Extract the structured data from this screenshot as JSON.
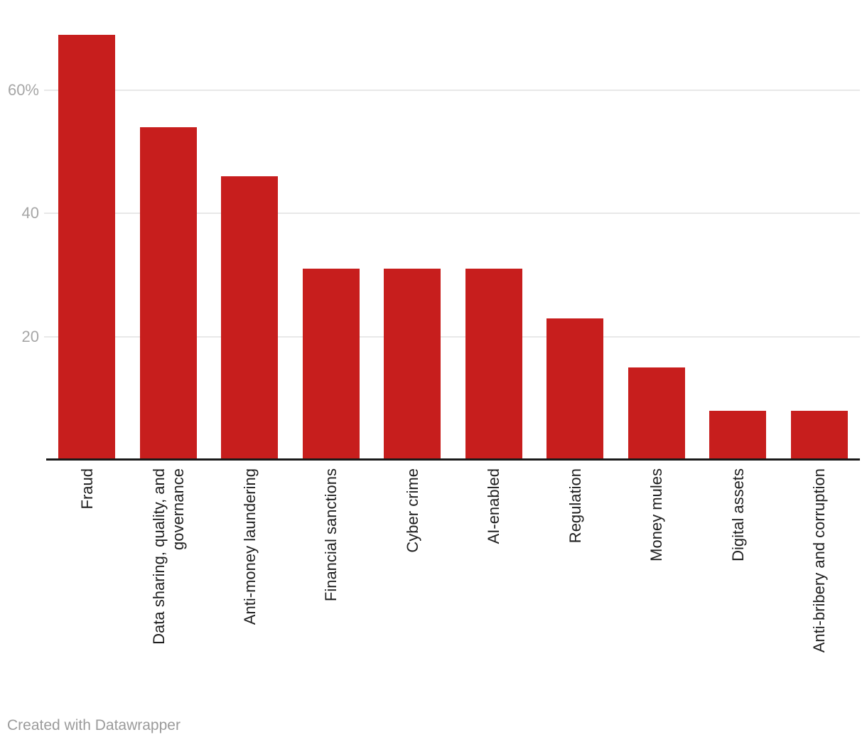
{
  "chart_data": {
    "type": "bar",
    "title": "",
    "xlabel": "",
    "ylabel": "",
    "unit": "%",
    "categories": [
      "Fraud",
      "Data sharing, quality, and\ngovernance",
      "Anti-money laundering",
      "Financial sanctions",
      "Cyber crime",
      "AI-enabled",
      "Regulation",
      "Money mules",
      "Digital assets",
      "Anti-bribery and corruption"
    ],
    "values": [
      69,
      54,
      46,
      31,
      31,
      31,
      23,
      15,
      8,
      8
    ],
    "ylim": [
      0,
      72
    ],
    "y_ticks": [
      {
        "value": 20,
        "label": "20"
      },
      {
        "value": 40,
        "label": "40"
      },
      {
        "value": 60,
        "label": "60%"
      }
    ],
    "grid": "horizontal",
    "legend": "none",
    "bar_color": "#c71e1d",
    "gridline_color": "#e8e8e8",
    "axis_line_color": "#1a1a1a",
    "tick_label_color": "#a6a6a6",
    "category_label_color": "#1f1f1f"
  },
  "footer": {
    "attribution": "Created with Datawrapper"
  }
}
